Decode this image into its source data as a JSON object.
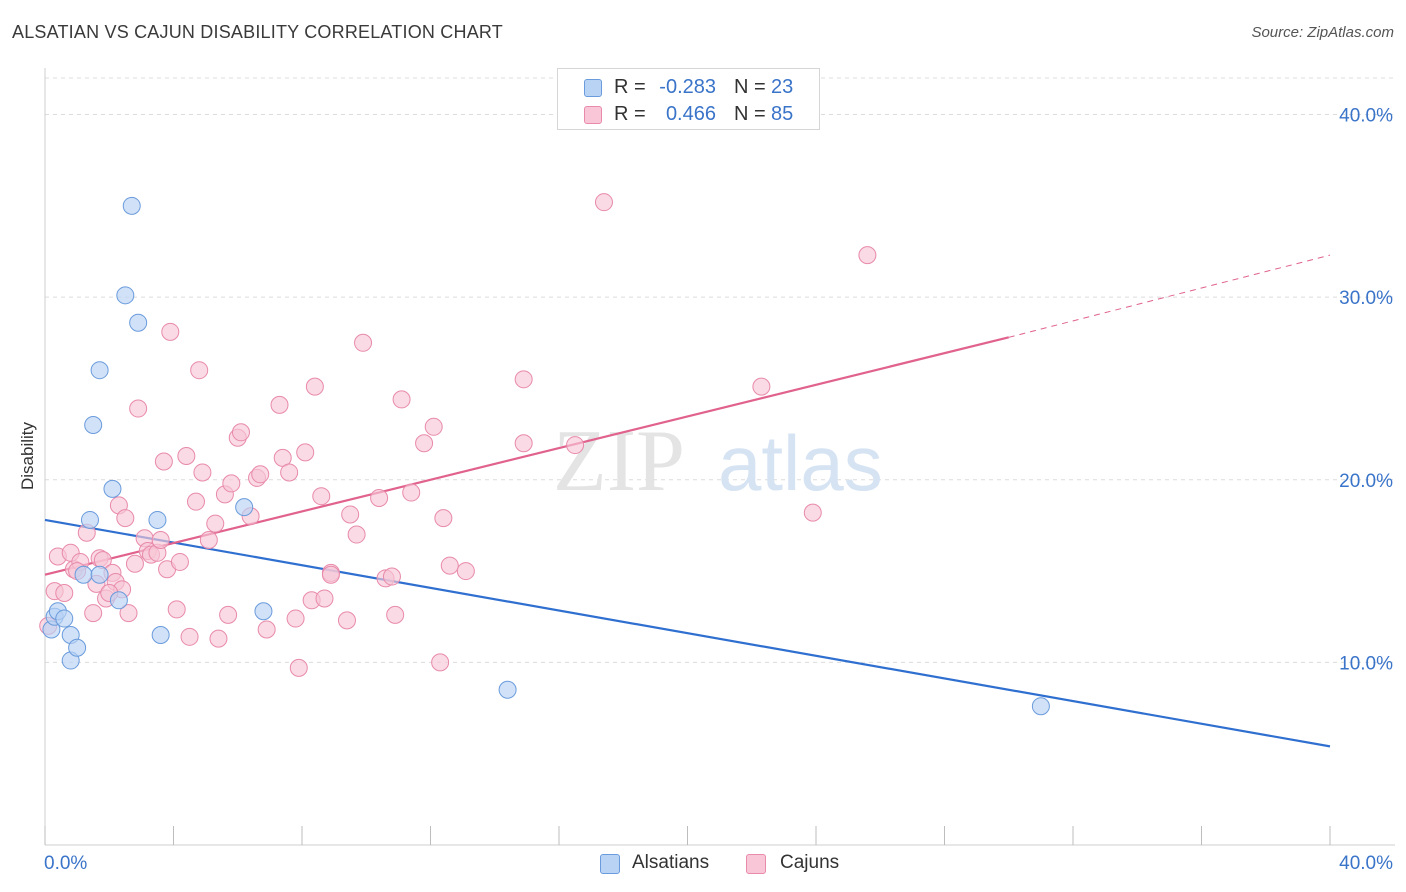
{
  "header": {
    "title": "ALSATIAN VS CAJUN DISABILITY CORRELATION CHART",
    "source": "Source: ZipAtlas.com"
  },
  "watermark": {
    "zip": "ZIP",
    "atlas": "atlas"
  },
  "legend_stats": {
    "alsatians": {
      "r_label": "R =",
      "r_value": "-0.283",
      "n_label": "N =",
      "n_value": "23"
    },
    "cajuns": {
      "r_label": "R =",
      "r_value": "0.466",
      "n_label": "N =",
      "n_value": "85"
    }
  },
  "bottom_legend": {
    "alsatians": "Alsatians",
    "cajuns": "Cajuns"
  },
  "colors": {
    "alsatians_fill": "#b9d3f5",
    "alsatians_stroke": "#6a9bdc",
    "alsatians_line": "#2f6fd0",
    "cajuns_fill": "#f8c6d6",
    "cajuns_stroke": "#e88aaa",
    "cajuns_line": "#e0628d",
    "tick_label": "#3a74c9",
    "grid": "#dcdcdc"
  },
  "chart_data": {
    "type": "scatter",
    "title": "ALSATIAN VS CAJUN DISABILITY CORRELATION CHART",
    "xlabel": "",
    "ylabel": "Disability",
    "xlim": [
      0,
      40
    ],
    "ylim": [
      0,
      42
    ],
    "x_tick_labels": [
      "0.0%",
      "40.0%"
    ],
    "y_ticks": [
      10,
      20,
      30,
      40
    ],
    "y_tick_labels": [
      "10.0%",
      "20.0%",
      "30.0%",
      "40.0%"
    ],
    "grid": true,
    "legend_position": "top-center",
    "series": [
      {
        "name": "Alsatians",
        "points": [
          [
            0.2,
            11.8
          ],
          [
            0.3,
            12.5
          ],
          [
            0.4,
            12.8
          ],
          [
            0.6,
            12.4
          ],
          [
            0.8,
            11.5
          ],
          [
            0.8,
            10.1
          ],
          [
            1.0,
            10.8
          ],
          [
            1.2,
            14.8
          ],
          [
            1.4,
            17.8
          ],
          [
            1.5,
            23.0
          ],
          [
            1.7,
            26.0
          ],
          [
            1.7,
            14.8
          ],
          [
            2.1,
            19.5
          ],
          [
            2.3,
            13.4
          ],
          [
            2.5,
            30.1
          ],
          [
            2.7,
            35.0
          ],
          [
            2.9,
            28.6
          ],
          [
            3.5,
            17.8
          ],
          [
            3.6,
            11.5
          ],
          [
            6.2,
            18.5
          ],
          [
            6.8,
            12.8
          ],
          [
            14.4,
            8.5
          ],
          [
            31.0,
            7.6
          ]
        ],
        "trend": {
          "x": [
            0,
            40
          ],
          "y": [
            17.8,
            5.4
          ],
          "style": "solid"
        }
      },
      {
        "name": "Cajuns",
        "points": [
          [
            0.1,
            12.0
          ],
          [
            0.3,
            13.9
          ],
          [
            0.4,
            15.8
          ],
          [
            0.6,
            13.8
          ],
          [
            0.8,
            16.0
          ],
          [
            0.9,
            15.1
          ],
          [
            1.1,
            15.5
          ],
          [
            1.3,
            17.1
          ],
          [
            1.5,
            12.7
          ],
          [
            1.6,
            14.3
          ],
          [
            1.7,
            15.7
          ],
          [
            1.8,
            15.6
          ],
          [
            1.9,
            13.5
          ],
          [
            2.1,
            14.9
          ],
          [
            2.2,
            14.4
          ],
          [
            2.3,
            18.6
          ],
          [
            2.4,
            14.0
          ],
          [
            2.5,
            17.9
          ],
          [
            2.6,
            12.7
          ],
          [
            2.8,
            15.4
          ],
          [
            2.9,
            23.9
          ],
          [
            3.1,
            16.8
          ],
          [
            3.2,
            16.1
          ],
          [
            3.3,
            15.9
          ],
          [
            3.5,
            16.0
          ],
          [
            3.6,
            16.7
          ],
          [
            3.7,
            21.0
          ],
          [
            3.8,
            15.1
          ],
          [
            3.9,
            28.1
          ],
          [
            4.1,
            12.9
          ],
          [
            4.2,
            15.5
          ],
          [
            4.4,
            21.3
          ],
          [
            4.5,
            11.4
          ],
          [
            4.7,
            18.8
          ],
          [
            4.8,
            26.0
          ],
          [
            4.9,
            20.4
          ],
          [
            5.1,
            16.7
          ],
          [
            5.3,
            17.6
          ],
          [
            5.4,
            11.3
          ],
          [
            5.6,
            19.2
          ],
          [
            5.7,
            12.6
          ],
          [
            5.8,
            19.8
          ],
          [
            6.0,
            22.3
          ],
          [
            6.1,
            22.6
          ],
          [
            6.4,
            18.0
          ],
          [
            6.6,
            20.1
          ],
          [
            6.7,
            20.3
          ],
          [
            6.9,
            11.8
          ],
          [
            7.3,
            24.1
          ],
          [
            7.4,
            21.2
          ],
          [
            7.6,
            20.4
          ],
          [
            7.8,
            12.4
          ],
          [
            7.9,
            9.7
          ],
          [
            8.1,
            21.5
          ],
          [
            8.3,
            13.4
          ],
          [
            8.4,
            25.1
          ],
          [
            8.6,
            19.1
          ],
          [
            8.7,
            13.5
          ],
          [
            8.9,
            14.9
          ],
          [
            8.9,
            14.8
          ],
          [
            9.4,
            12.3
          ],
          [
            9.5,
            18.1
          ],
          [
            9.7,
            17.0
          ],
          [
            9.9,
            27.5
          ],
          [
            10.4,
            19.0
          ],
          [
            10.6,
            14.6
          ],
          [
            10.8,
            14.7
          ],
          [
            10.9,
            12.6
          ],
          [
            11.1,
            24.4
          ],
          [
            11.4,
            19.3
          ],
          [
            11.8,
            22.0
          ],
          [
            12.1,
            22.9
          ],
          [
            12.3,
            10.0
          ],
          [
            12.4,
            17.9
          ],
          [
            12.6,
            15.3
          ],
          [
            13.1,
            15.0
          ],
          [
            14.9,
            25.5
          ],
          [
            14.9,
            22.0
          ],
          [
            16.5,
            21.9
          ],
          [
            17.4,
            35.2
          ],
          [
            22.3,
            25.1
          ],
          [
            23.9,
            18.2
          ],
          [
            25.6,
            32.3
          ],
          [
            1.0,
            15.0
          ],
          [
            2.0,
            13.8
          ]
        ],
        "trend": {
          "x": [
            0,
            30
          ],
          "y": [
            14.8,
            27.8
          ],
          "x_dashed": [
            30,
            40
          ],
          "y_dashed": [
            27.8,
            32.3
          ],
          "style": "solid-then-dashed"
        }
      }
    ]
  }
}
